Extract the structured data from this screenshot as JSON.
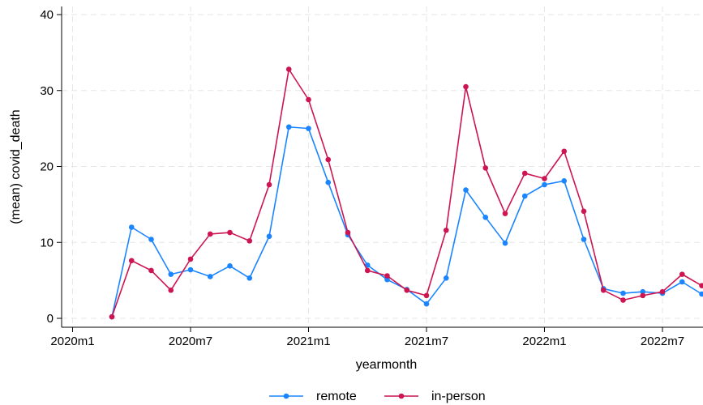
{
  "chart_data": {
    "type": "line",
    "title": "",
    "xlabel": "yearmonth",
    "ylabel": "(mean) covid_death",
    "x": [
      "2020m3",
      "2020m4",
      "2020m5",
      "2020m6",
      "2020m7",
      "2020m8",
      "2020m9",
      "2020m10",
      "2020m11",
      "2020m12",
      "2021m1",
      "2021m2",
      "2021m3",
      "2021m4",
      "2021m5",
      "2021m6",
      "2021m7",
      "2021m8",
      "2021m9",
      "2021m10",
      "2021m11",
      "2021m12",
      "2022m1",
      "2022m2",
      "2022m3",
      "2022m4",
      "2022m5",
      "2022m6",
      "2022m7",
      "2022m8",
      "2022m9"
    ],
    "xticks": [
      "2020m1",
      "2020m7",
      "2021m1",
      "2021m7",
      "2022m1",
      "2022m7"
    ],
    "yticks": [
      0,
      10,
      20,
      30,
      40
    ],
    "ylim": [
      0,
      40
    ],
    "grid": true,
    "legend_position": "bottom",
    "series": [
      {
        "name": "remote",
        "color": "#1a85ff",
        "values": [
          0.2,
          12.0,
          10.4,
          5.8,
          6.4,
          5.5,
          6.9,
          5.3,
          10.8,
          25.2,
          25.0,
          17.9,
          11.0,
          7.0,
          5.1,
          3.8,
          1.9,
          5.3,
          16.9,
          13.3,
          9.9,
          16.1,
          17.6,
          18.1,
          10.4,
          3.9,
          3.3,
          3.5,
          3.3,
          4.8,
          3.2
        ]
      },
      {
        "name": "in-person",
        "color": "#cc1551",
        "values": [
          0.2,
          7.6,
          6.3,
          3.7,
          7.8,
          11.1,
          11.3,
          10.2,
          17.6,
          32.8,
          28.8,
          20.9,
          11.3,
          6.3,
          5.6,
          3.7,
          3.0,
          11.6,
          30.5,
          19.8,
          13.8,
          19.1,
          18.4,
          22.0,
          14.1,
          3.7,
          2.4,
          3.0,
          3.5,
          5.8,
          4.3
        ]
      }
    ]
  }
}
